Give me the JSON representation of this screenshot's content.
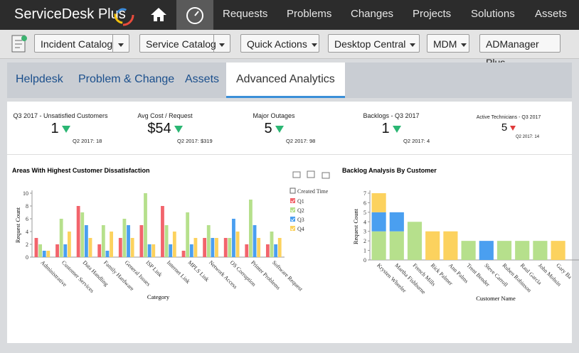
{
  "nav": {
    "brand": "ServiceDesk Plus",
    "menu": [
      "Requests",
      "Problems",
      "Changes",
      "Projects",
      "Solutions",
      "Assets"
    ]
  },
  "toolbar": [
    "Incident Catalog",
    "Service Catalog",
    "Quick Actions",
    "Desktop Central",
    "MDM",
    "ADManager Plus"
  ],
  "tabs": [
    "Helpdesk",
    "Problem & Change",
    "Assets",
    "Advanced Analytics"
  ],
  "kpis": [
    {
      "label": "Q3 2017 - Unsatisfied Customers",
      "value": "1",
      "previous": "Q2 2017: 18"
    },
    {
      "label": "Avg Cost / Request",
      "value": "$54",
      "previous": "Q2 2017: $319"
    },
    {
      "label": "Major Outages",
      "value": "5",
      "previous": "Q2 2017: 98"
    },
    {
      "label": "Backlogs - Q3 2017",
      "value": "1",
      "previous": "Q2 2017: 4"
    },
    {
      "label": "Active Technicians - Q3 2017",
      "value": "5",
      "previous": "Q2 2017: 14"
    }
  ],
  "chart_data": [
    {
      "type": "bar",
      "title": "Areas With Highest Customer Dissatisfaction",
      "x_label": "Category",
      "y_label": "Request Count",
      "legend_title": "Created Time",
      "categories": [
        "Administrative",
        "Customer Services",
        "Data Handling",
        "Family Hardware",
        "General Issues",
        "ISP Link",
        "Internet Link",
        "MPLS Link",
        "Network Access",
        "OS Corruption",
        "Printer Problems",
        "Software Request"
      ],
      "series": [
        {
          "name": "Q1",
          "color": "#f2646c",
          "values": [
            3,
            2,
            8,
            2,
            3,
            5,
            8,
            1,
            3,
            3,
            2,
            2
          ]
        },
        {
          "name": "Q2",
          "color": "#b6e08c",
          "values": [
            2,
            6,
            7,
            5,
            6,
            10,
            5,
            7,
            5,
            3,
            9,
            4
          ]
        },
        {
          "name": "Q3",
          "color": "#4a9ff0",
          "values": [
            1,
            2,
            5,
            1,
            5,
            2,
            2,
            2,
            3,
            6,
            5,
            2
          ]
        },
        {
          "name": "Q4",
          "color": "#fcd25e",
          "values": [
            1,
            4,
            3,
            4,
            3,
            2,
            4,
            3,
            3,
            4,
            3,
            3
          ]
        }
      ],
      "ylim": [
        0,
        10
      ],
      "yticks": [
        0,
        2,
        4,
        6,
        8,
        10
      ],
      "grid": false,
      "stacked": false
    },
    {
      "type": "bar",
      "title": "Backlog Analysis By Customer",
      "x_label": "Customer Name",
      "y_label": "Request Count",
      "categories": [
        "Krysten Wheeler",
        "Martha Fishburne",
        "French Mills",
        "Rick Palmer",
        "Ann Palms",
        "Trent Bender",
        "Steve Carroll",
        "Ruben Robinson",
        "Raul Garcia",
        "John Mohsin",
        "Gary Ba"
      ],
      "series": [
        {
          "color": "#b6e08c",
          "values": [
            3,
            3,
            4,
            0,
            0,
            2,
            0,
            2,
            2,
            2,
            0
          ]
        },
        {
          "color": "#4a9ff0",
          "values": [
            2,
            2,
            0,
            0,
            0,
            0,
            2,
            0,
            0,
            0,
            0
          ]
        },
        {
          "color": "#fcd25e",
          "values": [
            2,
            0,
            0,
            3,
            3,
            0,
            0,
            0,
            0,
            0,
            2
          ]
        }
      ],
      "ylim": [
        0,
        7
      ],
      "yticks": [
        0,
        1,
        2,
        3,
        4,
        5,
        6,
        7
      ],
      "grid": false,
      "stacked": true
    }
  ]
}
